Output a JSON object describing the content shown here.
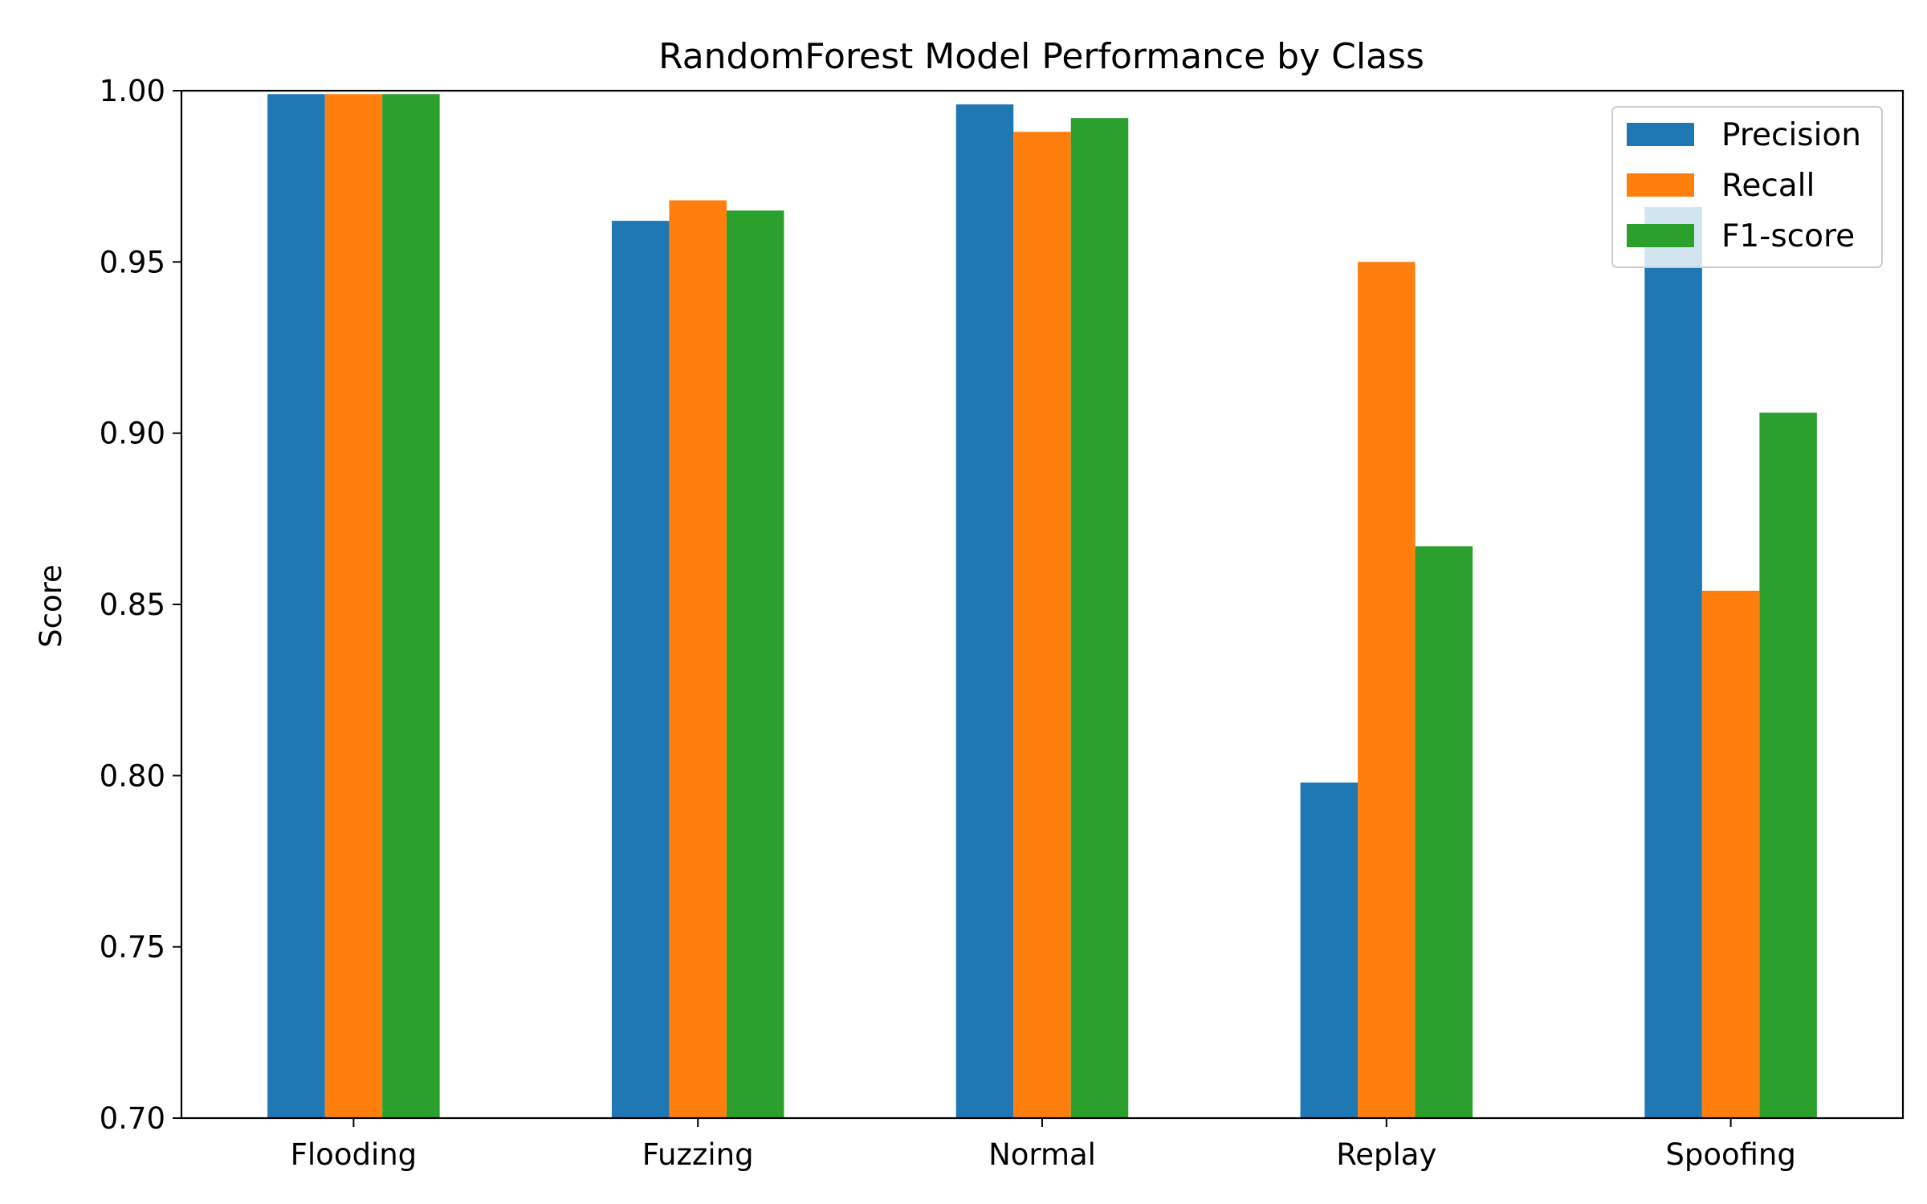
{
  "chart_data": {
    "type": "bar",
    "title": "RandomForest Model Performance by Class",
    "xlabel": "",
    "ylabel": "Score",
    "ylim": [
      0.7,
      1.0
    ],
    "yticks": [
      "0.70",
      "0.75",
      "0.80",
      "0.85",
      "0.90",
      "0.95",
      "1.00"
    ],
    "categories": [
      "Flooding",
      "Fuzzing",
      "Normal",
      "Replay",
      "Spoofing"
    ],
    "series": [
      {
        "name": "Precision",
        "color": "#1f77b4",
        "values": [
          0.999,
          0.962,
          0.996,
          0.798,
          0.966
        ]
      },
      {
        "name": "Recall",
        "color": "#ff7f0e",
        "values": [
          0.999,
          0.968,
          0.988,
          0.95,
          0.854
        ]
      },
      {
        "name": "F1-score",
        "color": "#2ca02c",
        "values": [
          0.999,
          0.965,
          0.992,
          0.867,
          0.906
        ]
      }
    ],
    "grid": false,
    "legend_position": "top-right"
  }
}
